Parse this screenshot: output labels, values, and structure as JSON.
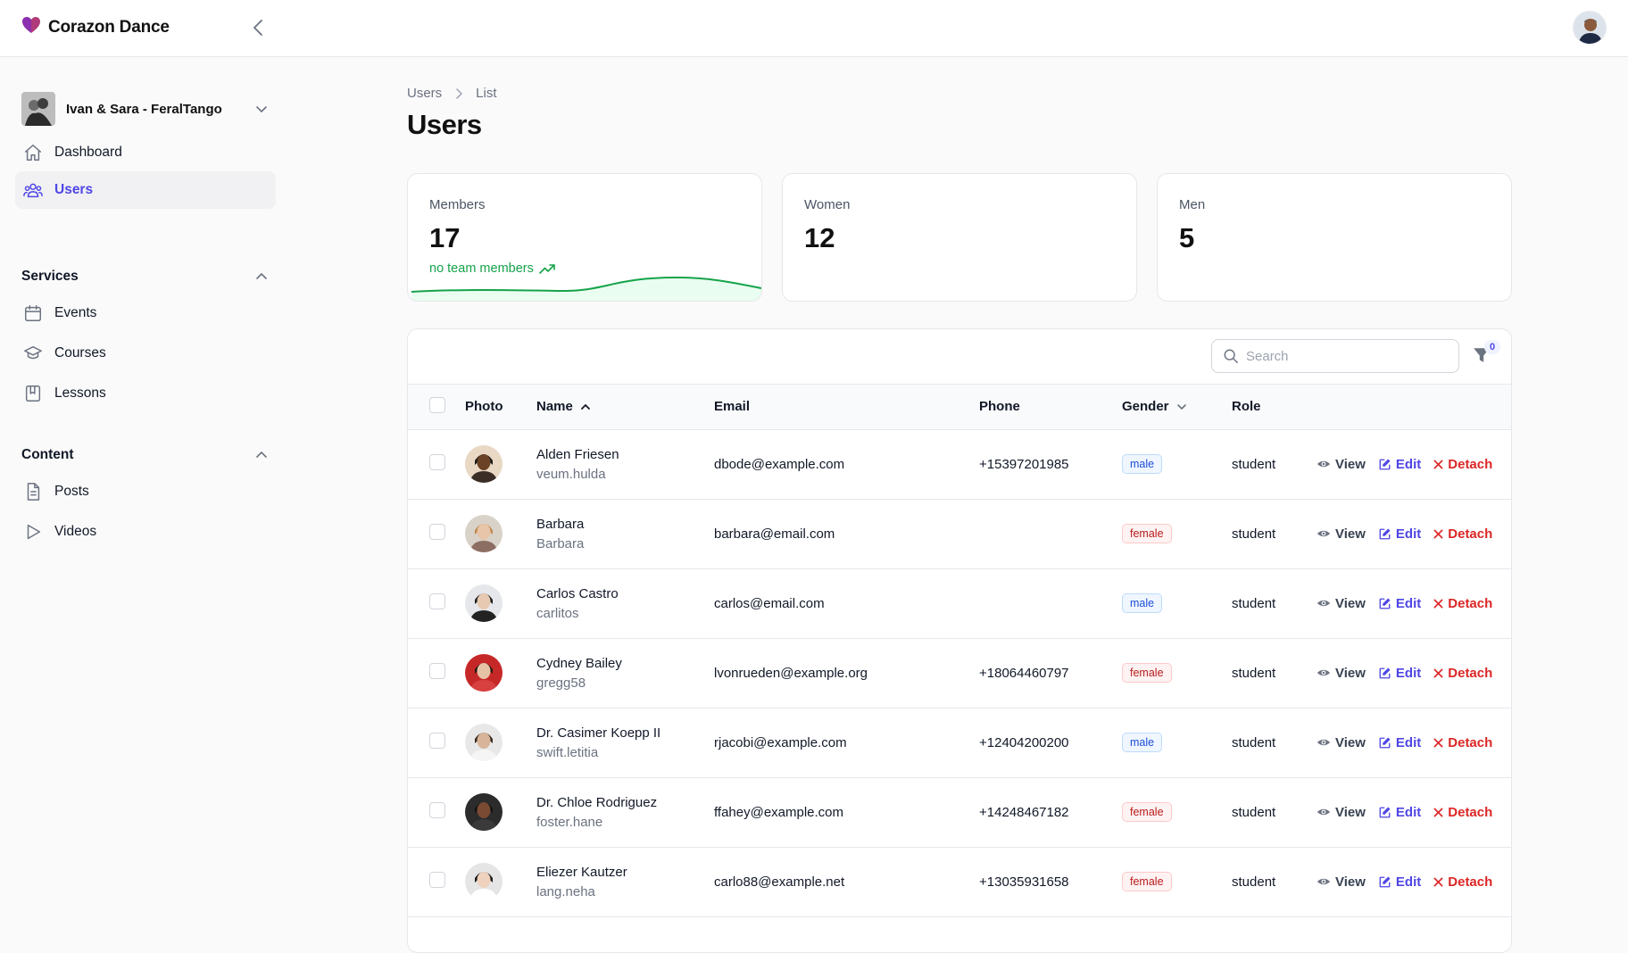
{
  "app": {
    "name": "Corazon Dance",
    "accent": "#4f46e5",
    "logo_color": "#b03a7a"
  },
  "sidebar": {
    "team_name": "Ivan & Sara - FeralTango",
    "nav": [
      {
        "label": "Dashboard",
        "icon": "home-icon"
      },
      {
        "label": "Users",
        "icon": "users-icon",
        "active": true
      }
    ],
    "groups": [
      {
        "label": "Services",
        "items": [
          {
            "label": "Events",
            "icon": "calendar-icon"
          },
          {
            "label": "Courses",
            "icon": "academic-cap-icon"
          },
          {
            "label": "Lessons",
            "icon": "book-icon"
          }
        ]
      },
      {
        "label": "Content",
        "items": [
          {
            "label": "Posts",
            "icon": "document-icon"
          },
          {
            "label": "Videos",
            "icon": "play-icon"
          }
        ]
      }
    ]
  },
  "breadcrumb": [
    "Users",
    "List"
  ],
  "page_title": "Users",
  "stats": [
    {
      "label": "Members",
      "value": "17",
      "description": "no team members",
      "trend_color": "#16a34a"
    },
    {
      "label": "Women",
      "value": "12"
    },
    {
      "label": "Men",
      "value": "5"
    }
  ],
  "search": {
    "placeholder": "Search",
    "value": ""
  },
  "filter_count": "0",
  "columns": {
    "photo": "Photo",
    "name": "Name",
    "email": "Email",
    "phone": "Phone",
    "gender": "Gender",
    "role": "Role"
  },
  "actions": {
    "view": "View",
    "edit": "Edit",
    "detach": "Detach"
  },
  "rows": [
    {
      "name": "Alden Friesen",
      "handle": "veum.hulda",
      "email": "dbode@example.com",
      "phone": "+15397201985",
      "gender": "male",
      "role": "student"
    },
    {
      "name": "Barbara",
      "handle": "Barbara",
      "email": "barbara@email.com",
      "phone": "",
      "gender": "female",
      "role": "student"
    },
    {
      "name": "Carlos Castro",
      "handle": "carlitos",
      "email": "carlos@email.com",
      "phone": "",
      "gender": "male",
      "role": "student"
    },
    {
      "name": "Cydney Bailey",
      "handle": "gregg58",
      "email": "lvonrueden@example.org",
      "phone": "+18064460797",
      "gender": "female",
      "role": "student"
    },
    {
      "name": "Dr. Casimer Koepp II",
      "handle": "swift.letitia",
      "email": "rjacobi@example.com",
      "phone": "+12404200200",
      "gender": "male",
      "role": "student"
    },
    {
      "name": "Dr. Chloe Rodriguez",
      "handle": "foster.hane",
      "email": "ffahey@example.com",
      "phone": "+14248467182",
      "gender": "female",
      "role": "student"
    },
    {
      "name": "Eliezer Kautzer",
      "handle": "lang.neha",
      "email": "carlo88@example.net",
      "phone": "+13035931658",
      "gender": "female",
      "role": "student"
    }
  ]
}
